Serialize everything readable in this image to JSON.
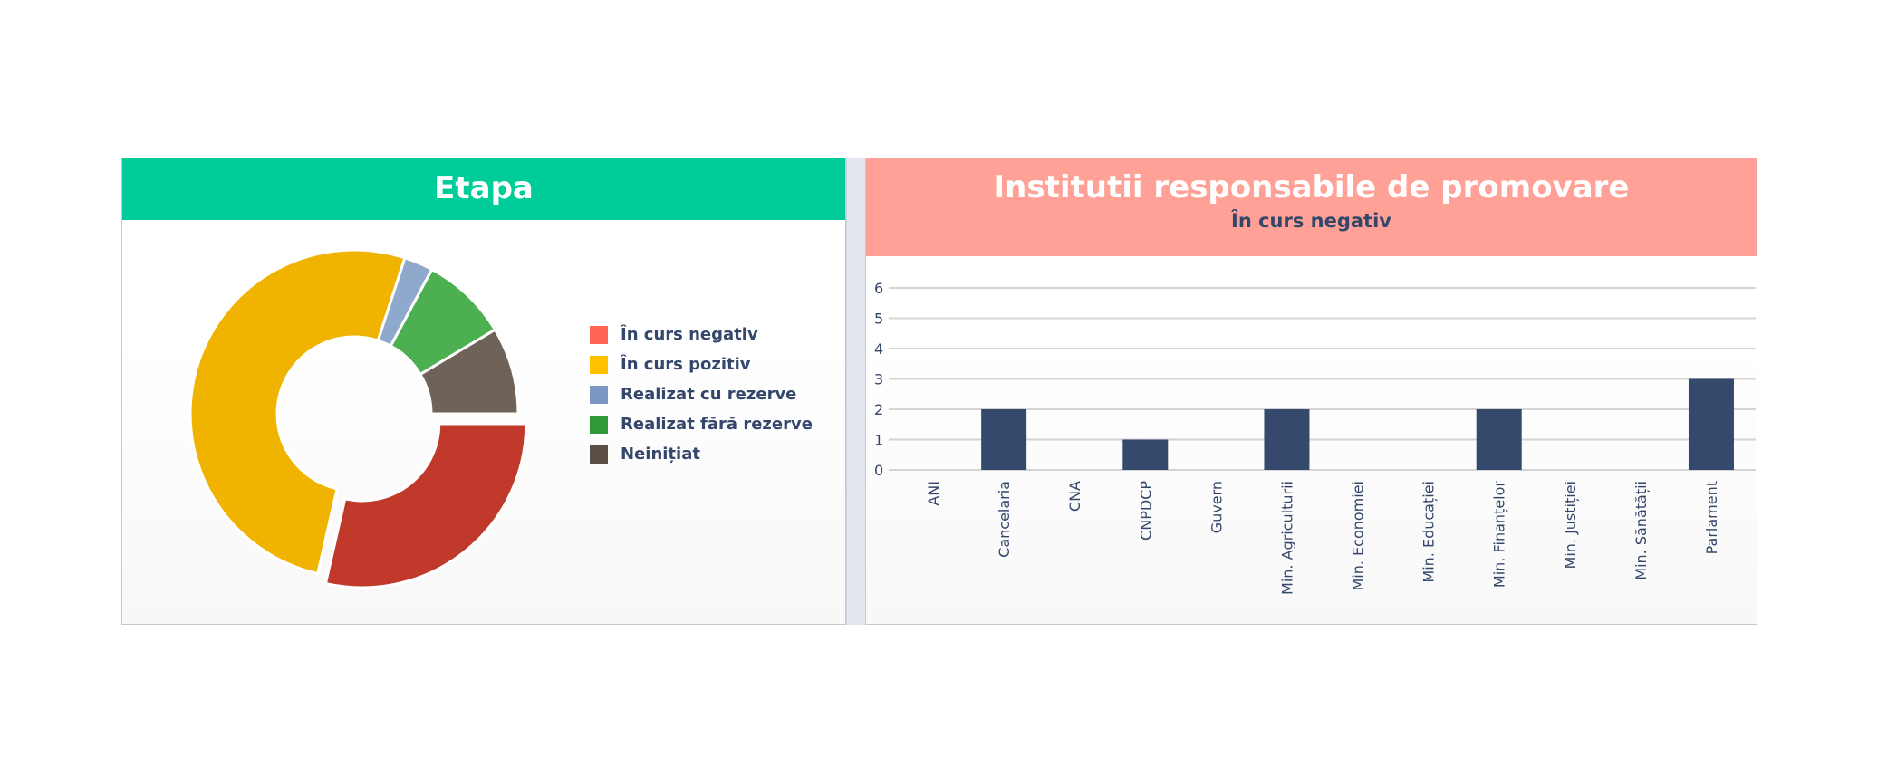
{
  "chart_data": [
    {
      "type": "pie",
      "variant": "donut",
      "title": "Etapa",
      "labels": [
        "În curs negativ",
        "În curs pozitiv",
        "Realizat cu rezerve",
        "Realizat fără rezerve",
        "Neinițiat"
      ],
      "values": [
        10,
        18,
        1,
        3,
        3
      ],
      "colors": [
        "#c0392b",
        "#f0b400",
        "#8fa9cc",
        "#4caf50",
        "#6e6259"
      ],
      "legend_colors": [
        "#ff6655",
        "#ffc000",
        "#7b96c0",
        "#2e9936",
        "#5a5048"
      ],
      "exploded": [
        true,
        false,
        false,
        false,
        false
      ],
      "legend": "right"
    },
    {
      "type": "bar",
      "title": "Institutii responsabile de promovare",
      "subtitle": "În curs negativ",
      "categories": [
        "ANI",
        "Cancelaria",
        "CNA",
        "CNPDCP",
        "Guvern",
        "Min. Agriculturii",
        "Min. Economiei",
        "Min. Educației",
        "Min. Finanțelor",
        "Min. Justiției",
        "Min. Sănătății",
        "Parlament"
      ],
      "values": [
        0,
        2,
        0,
        1,
        0,
        2,
        0,
        0,
        2,
        0,
        0,
        3
      ],
      "ylim": [
        0,
        6
      ],
      "yticks": [
        "0",
        "1",
        "2",
        "3",
        "4",
        "5",
        "6"
      ],
      "grid": true,
      "color": "#34496b"
    }
  ]
}
